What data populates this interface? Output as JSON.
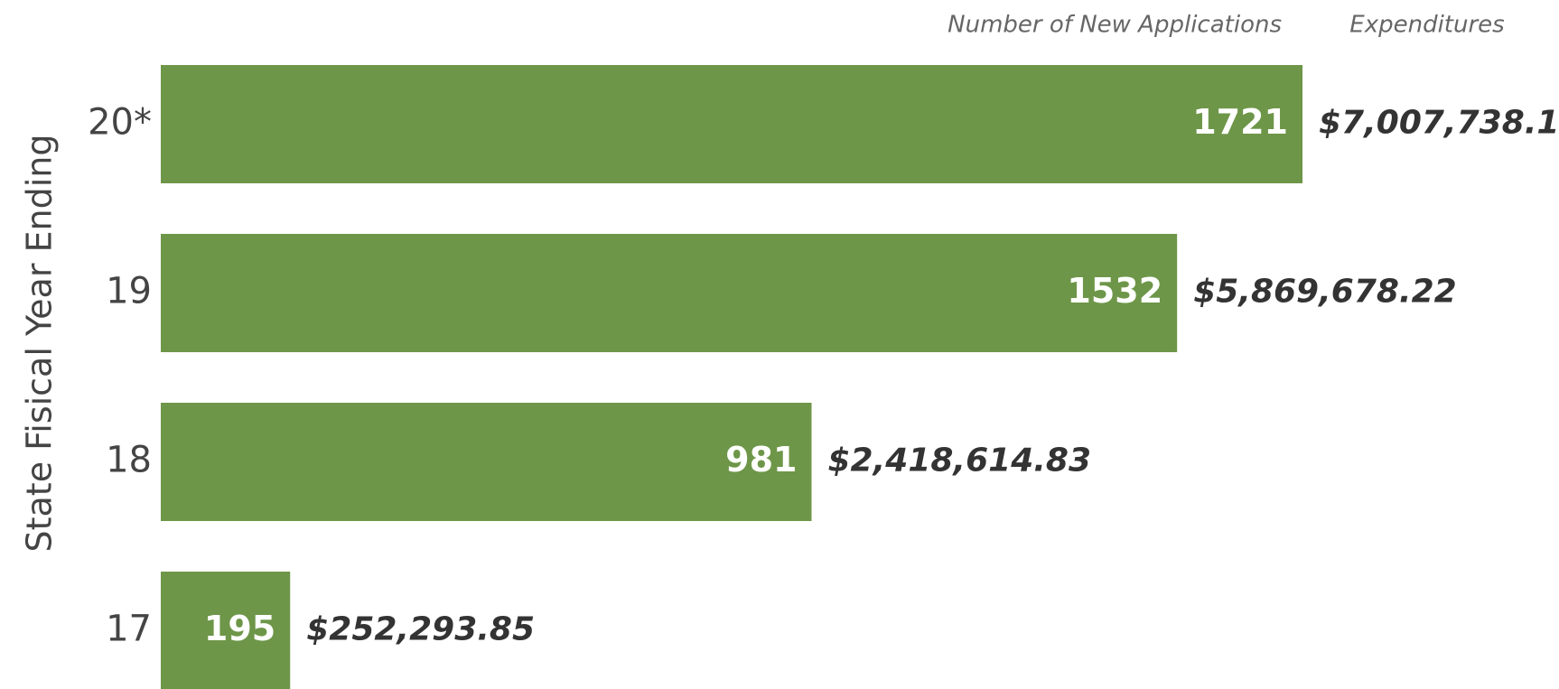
{
  "chart_data": {
    "type": "bar",
    "orientation": "horizontal",
    "y_label": "State Fisical Year Ending",
    "categories": [
      "20*",
      "19",
      "18",
      "17"
    ],
    "series": [
      {
        "name": "Number of New Applications",
        "color": "#6e9649",
        "values": [
          1721,
          1532,
          981,
          195
        ]
      },
      {
        "name": "Expenditures",
        "values": [
          7007738.1,
          5869678.22,
          2418614.83,
          252293.85
        ],
        "value_labels": [
          "$7,007,738.10",
          "$5,869,678.22",
          "$2,418,614.83",
          "$252,293.85"
        ]
      }
    ]
  }
}
